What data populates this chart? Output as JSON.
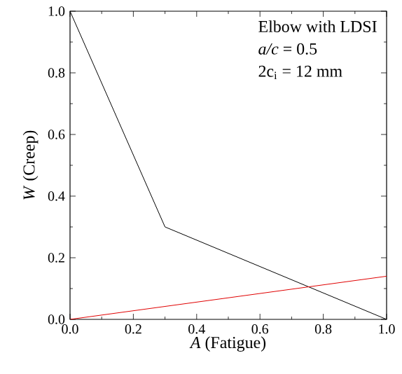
{
  "chart_data": {
    "type": "line",
    "xlabel": "*A* (Fatigue)",
    "ylabel": "*W* (Creep)",
    "annotations": [
      "Elbow with LDSI",
      "*a/c* = 0.5",
      "2c$_{i}$ = 12 mm"
    ],
    "series": [
      {
        "color": "#000000",
        "x": [
          0,
          0.3,
          1
        ],
        "values": [
          1,
          0.3,
          0
        ]
      },
      {
        "color": "#e00000",
        "x": [
          0,
          1
        ],
        "values": [
          0,
          0.14
        ]
      }
    ],
    "xlim": [
      0,
      1
    ],
    "ylim": [
      0,
      1
    ],
    "xticks": [
      {
        "value": 0,
        "label": "0.0"
      },
      0.2,
      0.4,
      0.6,
      0.8,
      {
        "value": 1,
        "label": "1.0"
      }
    ],
    "yticks": [
      {
        "value": 0,
        "label": "0.0"
      },
      0.2,
      0.4,
      0.6,
      0.8,
      {
        "value": 1,
        "label": "1.0"
      }
    ],
    "marker": "none",
    "line_style": "solid"
  }
}
